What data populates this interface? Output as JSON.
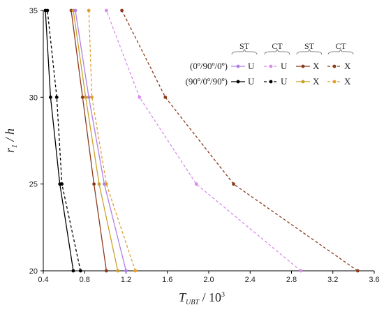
{
  "chart_data": {
    "type": "line",
    "title": "",
    "xlabel": {
      "main": "T",
      "sub": "UBT",
      "rest": " / 10",
      "sup": "3"
    },
    "ylabel": {
      "main": "r",
      "sub": "1",
      "rest": " / h"
    },
    "xlim": [
      0.4,
      3.6
    ],
    "ylim": [
      20,
      35
    ],
    "xticks": [
      "0.4",
      "0.8",
      "1.2",
      "1.6",
      "2.0",
      "2.4",
      "2.8",
      "3.2",
      "3.6"
    ],
    "yticks": [
      "20",
      "25",
      "30",
      "35"
    ],
    "legend": {
      "position": "top-right",
      "group_headers": [
        "ST",
        "CT",
        "ST",
        "CT"
      ],
      "row_labels": [
        "(0º/90º/0º)",
        "(90º/0º/90º)"
      ],
      "entry_labels": [
        [
          "U",
          "U",
          "X",
          "X"
        ],
        [
          "U",
          "U",
          "X",
          "X"
        ]
      ]
    },
    "series": [
      {
        "group": "(90º/0º/90º)",
        "theory": "ST",
        "mode": "U",
        "color": "#000000",
        "dashed": false,
        "y": [
          20,
          25,
          30,
          35
        ],
        "x": [
          0.69,
          0.56,
          0.47,
          0.42
        ]
      },
      {
        "group": "(90º/0º/90º)",
        "theory": "CT",
        "mode": "U",
        "color": "#000000",
        "dashed": true,
        "y": [
          20,
          25,
          30,
          35
        ],
        "x": [
          0.76,
          0.58,
          0.53,
          0.44
        ]
      },
      {
        "group": "(0º/90º/0º)",
        "theory": "ST",
        "mode": "X",
        "color": "#8B3A1A",
        "dashed": false,
        "y": [
          20,
          25,
          30,
          35
        ],
        "x": [
          1.01,
          0.89,
          0.78,
          0.67
        ]
      },
      {
        "group": "(90º/0º/90º)",
        "theory": "ST",
        "mode": "X",
        "color": "#C9A227",
        "dashed": false,
        "y": [
          20,
          25,
          30,
          35
        ],
        "x": [
          1.12,
          0.94,
          0.81,
          0.69
        ]
      },
      {
        "group": "(0º/90º/0º)",
        "theory": "ST",
        "mode": "U",
        "color": "#B07FE6",
        "dashed": false,
        "y": [
          20,
          25,
          30,
          35
        ],
        "x": [
          1.2,
          0.99,
          0.84,
          0.71
        ]
      },
      {
        "group": "(90º/0º/90º)",
        "theory": "CT",
        "mode": "X",
        "color": "#E0A030",
        "dashed": true,
        "y": [
          20,
          25,
          30,
          35
        ],
        "x": [
          1.29,
          1.01,
          0.87,
          0.84
        ]
      },
      {
        "group": "(0º/90º/0º)",
        "theory": "CT",
        "mode": "U",
        "color": "#D98BEB",
        "dashed": true,
        "y": [
          20,
          25,
          30,
          35
        ],
        "x": [
          2.89,
          1.88,
          1.33,
          1.01
        ]
      },
      {
        "group": "(0º/90º/0º)",
        "theory": "CT",
        "mode": "X",
        "color": "#8B3A1A",
        "dashed": true,
        "y": [
          20,
          25,
          30,
          35
        ],
        "x": [
          3.44,
          2.24,
          1.58,
          1.16
        ]
      }
    ]
  }
}
